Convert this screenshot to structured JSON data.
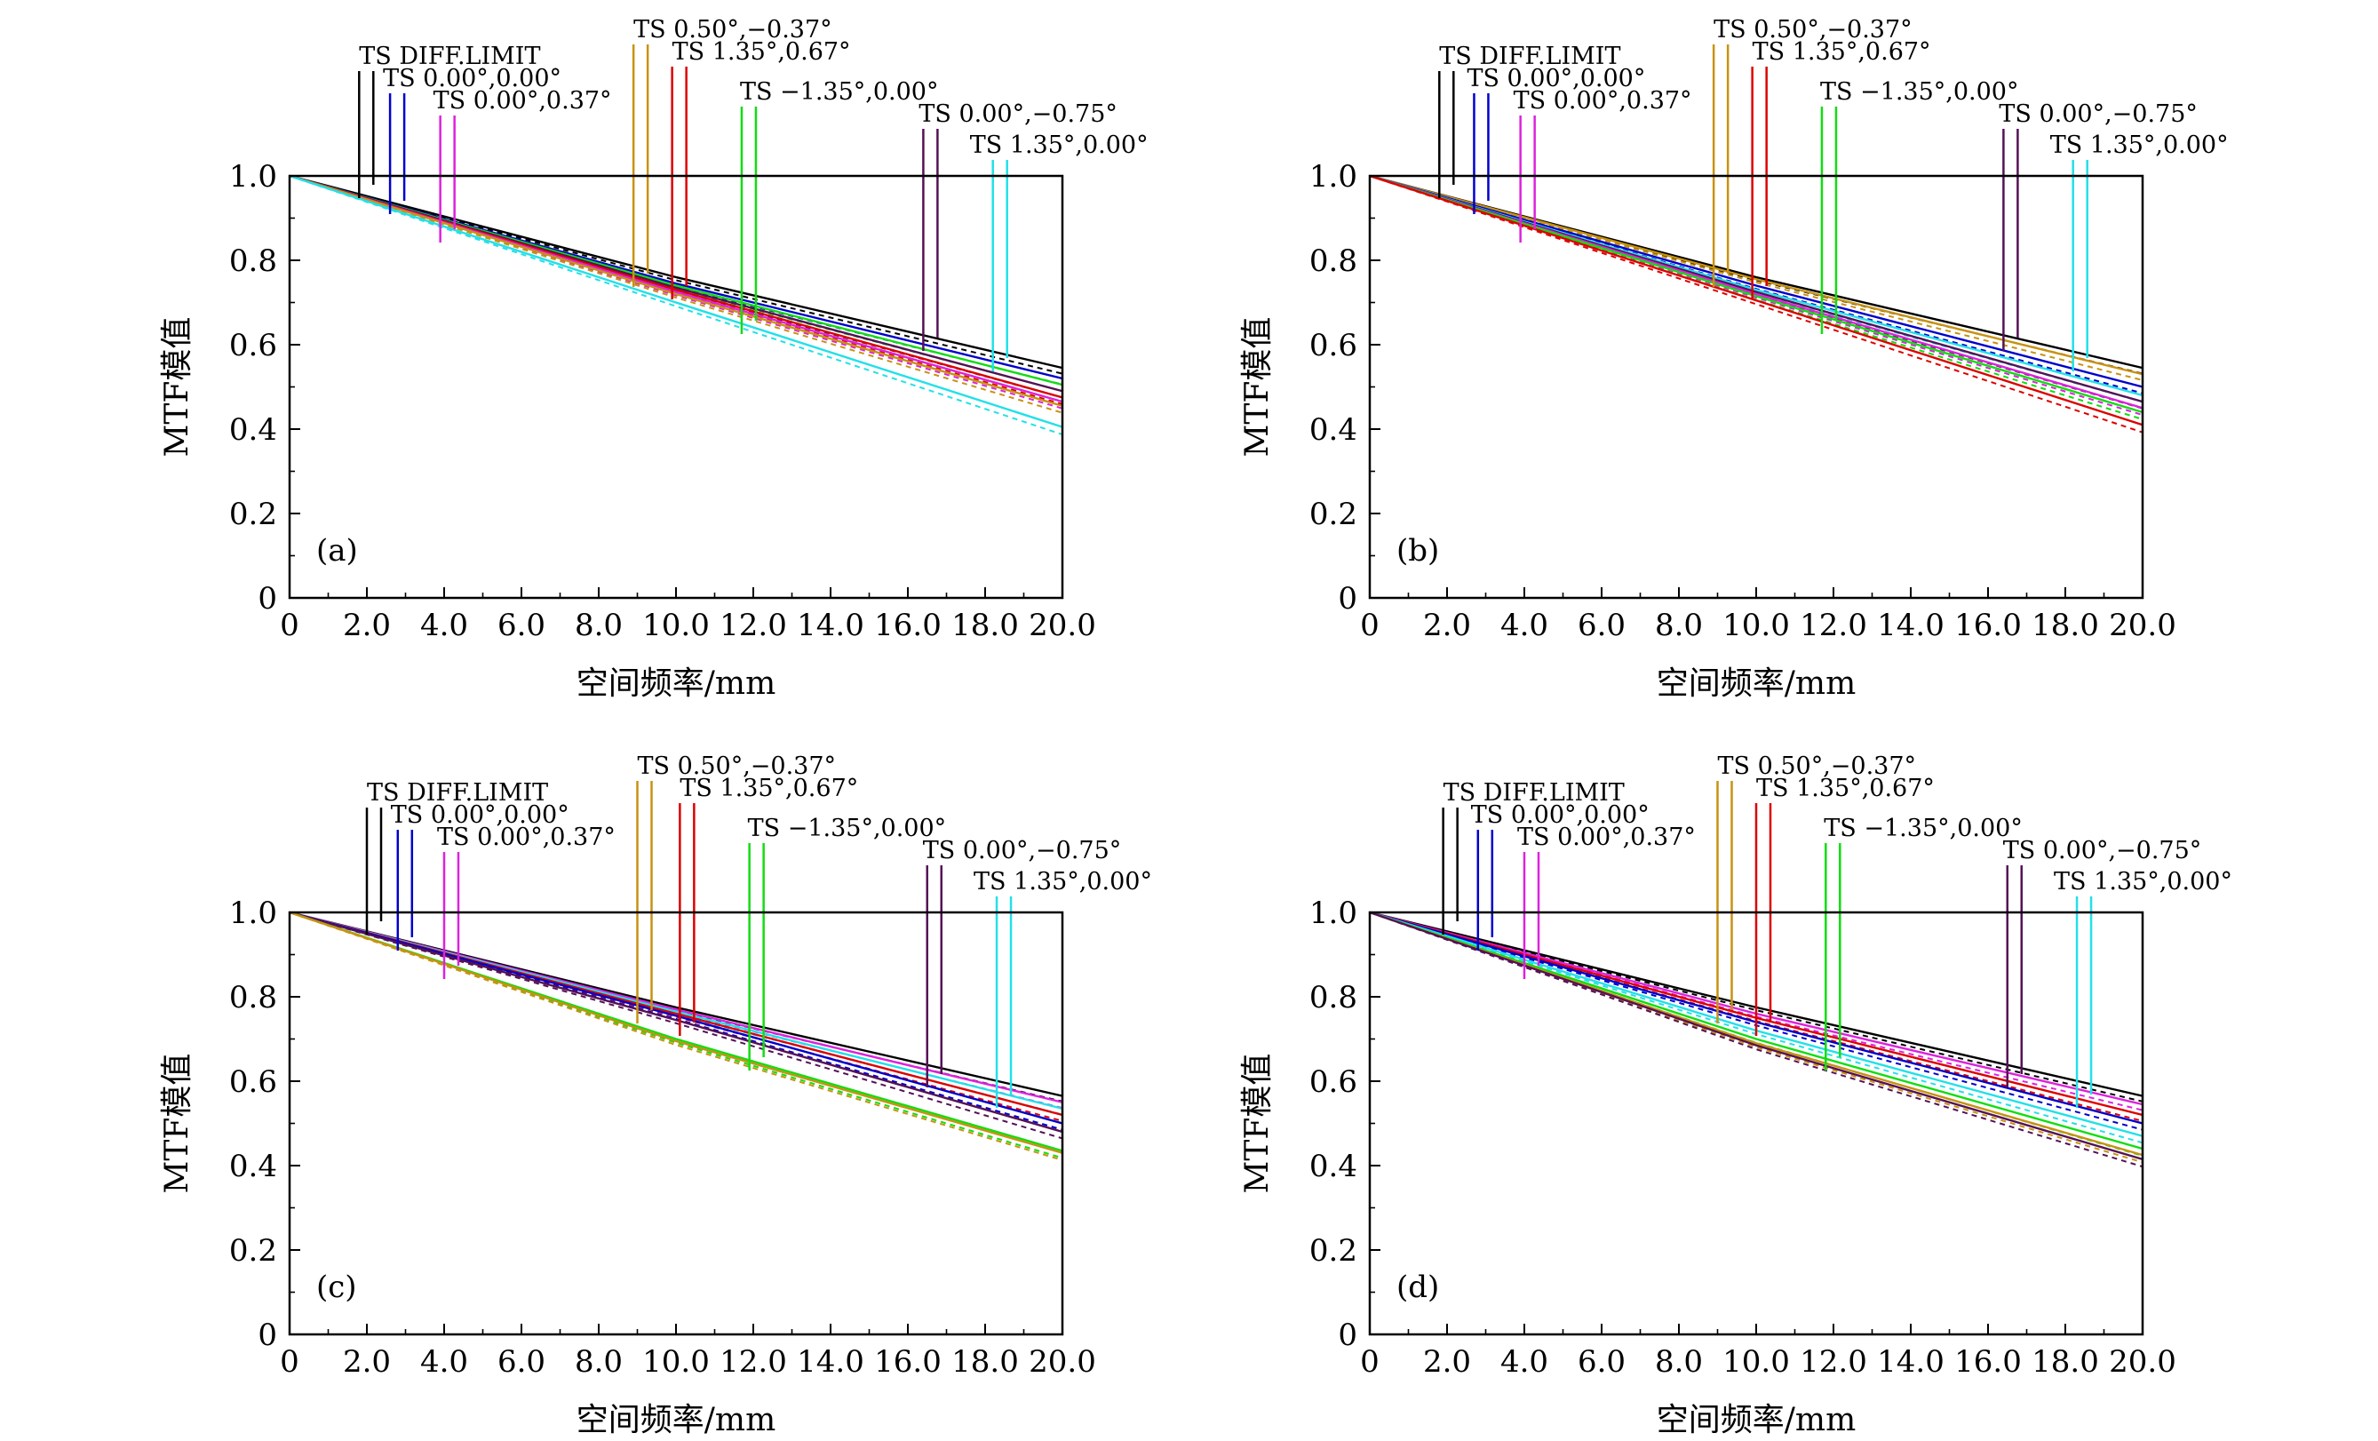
{
  "chart_data": [
    {
      "type": "line",
      "panel_label": "(a)",
      "xlabel": "空间频率/mm",
      "ylabel": "MTF模值",
      "xlim": [
        0,
        20
      ],
      "ylim": [
        0,
        1
      ],
      "xticks": [
        "0",
        "2.0",
        "4.0",
        "6.0",
        "8.0",
        "10.0",
        "12.0",
        "14.0",
        "16.0",
        "18.0",
        "20.0"
      ],
      "yticks": [
        "0",
        "0.2",
        "0.4",
        "0.6",
        "0.8",
        "1.0"
      ],
      "legend": [
        {
          "label": "TS DIFF.LIMIT",
          "color": "#000000",
          "x": 1.8
        },
        {
          "label": "TS 0.00°,0.00°",
          "color": "#0000cc",
          "x": 2.6
        },
        {
          "label": "TS 0.00°,0.37°",
          "color": "#dd22dd",
          "x": 3.9
        },
        {
          "label": "TS 0.50°,−0.37°",
          "color": "#c89211",
          "x": 8.9
        },
        {
          "label": "TS 1.35°,0.67°",
          "color": "#dd0000",
          "x": 9.9
        },
        {
          "label": "TS −1.35°,0.00°",
          "color": "#11dd11",
          "x": 11.7
        },
        {
          "label": "TS 0.00°,−0.75°",
          "color": "#551155",
          "x": 16.4
        },
        {
          "label": "TS 1.35°,0.00°",
          "color": "#22e0e8",
          "x": 18.2
        }
      ],
      "series": [
        {
          "color": "#000000",
          "values": [
            [
              0,
              1.0
            ],
            [
              10,
              0.76
            ],
            [
              20,
              0.545
            ]
          ]
        },
        {
          "color": "#0000cc",
          "values": [
            [
              0,
              1.0
            ],
            [
              10,
              0.745
            ],
            [
              20,
              0.52
            ]
          ]
        },
        {
          "color": "#11dd11",
          "values": [
            [
              0,
              1.0
            ],
            [
              10,
              0.74
            ],
            [
              20,
              0.505
            ]
          ]
        },
        {
          "color": "#551155",
          "values": [
            [
              0,
              1.0
            ],
            [
              10,
              0.735
            ],
            [
              20,
              0.49
            ]
          ]
        },
        {
          "color": "#dd0000",
          "values": [
            [
              0,
              1.0
            ],
            [
              10,
              0.73
            ],
            [
              20,
              0.475
            ]
          ]
        },
        {
          "color": "#dd22dd",
          "values": [
            [
              0,
              1.0
            ],
            [
              10,
              0.725
            ],
            [
              20,
              0.465
            ]
          ]
        },
        {
          "color": "#c89211",
          "values": [
            [
              0,
              1.0
            ],
            [
              10,
              0.72
            ],
            [
              20,
              0.455
            ]
          ]
        },
        {
          "color": "#22e0e8",
          "values": [
            [
              0,
              1.0
            ],
            [
              10,
              0.7
            ],
            [
              20,
              0.405
            ]
          ]
        }
      ]
    },
    {
      "type": "line",
      "panel_label": "(b)",
      "xlabel": "空间频率/mm",
      "ylabel": "MTF模值",
      "xlim": [
        0,
        20
      ],
      "ylim": [
        0,
        1
      ],
      "xticks": [
        "0",
        "2.0",
        "4.0",
        "6.0",
        "8.0",
        "10.0",
        "12.0",
        "14.0",
        "16.0",
        "18.0",
        "20.0"
      ],
      "yticks": [
        "0",
        "0.2",
        "0.4",
        "0.6",
        "0.8",
        "1.0"
      ],
      "legend": [
        {
          "label": "TS DIFF.LIMIT",
          "color": "#000000",
          "x": 1.8
        },
        {
          "label": "TS 0.00°,0.00°",
          "color": "#0000cc",
          "x": 2.7
        },
        {
          "label": "TS 0.00°,0.37°",
          "color": "#dd22dd",
          "x": 3.9
        },
        {
          "label": "TS 0.50°,−0.37°",
          "color": "#c89211",
          "x": 8.9
        },
        {
          "label": "TS 1.35°,0.67°",
          "color": "#dd0000",
          "x": 9.9
        },
        {
          "label": "TS −1.35°,0.00°",
          "color": "#11dd11",
          "x": 11.7
        },
        {
          "label": "TS 0.00°,−0.75°",
          "color": "#551155",
          "x": 16.4
        },
        {
          "label": "TS 1.35°,0.00°",
          "color": "#22e0e8",
          "x": 18.2
        }
      ],
      "series": [
        {
          "color": "#000000",
          "values": [
            [
              0,
              1.0
            ],
            [
              10,
              0.76
            ],
            [
              20,
              0.545
            ]
          ]
        },
        {
          "color": "#c89211",
          "values": [
            [
              0,
              1.0
            ],
            [
              10,
              0.755
            ],
            [
              20,
              0.53
            ]
          ]
        },
        {
          "color": "#0000cc",
          "values": [
            [
              0,
              1.0
            ],
            [
              10,
              0.74
            ],
            [
              20,
              0.5
            ]
          ]
        },
        {
          "color": "#22e0e8",
          "values": [
            [
              0,
              1.0
            ],
            [
              10,
              0.73
            ],
            [
              20,
              0.48
            ]
          ]
        },
        {
          "color": "#551155",
          "values": [
            [
              0,
              1.0
            ],
            [
              10,
              0.725
            ],
            [
              20,
              0.465
            ]
          ]
        },
        {
          "color": "#dd22dd",
          "values": [
            [
              0,
              1.0
            ],
            [
              10,
              0.72
            ],
            [
              20,
              0.45
            ]
          ]
        },
        {
          "color": "#11dd11",
          "values": [
            [
              0,
              1.0
            ],
            [
              10,
              0.715
            ],
            [
              20,
              0.44
            ]
          ]
        },
        {
          "color": "#dd0000",
          "values": [
            [
              0,
              1.0
            ],
            [
              10,
              0.705
            ],
            [
              20,
              0.41
            ]
          ]
        }
      ]
    },
    {
      "type": "line",
      "panel_label": "(c)",
      "xlabel": "空间频率/mm",
      "ylabel": "MTF模值",
      "xlim": [
        0,
        20
      ],
      "ylim": [
        0,
        1
      ],
      "xticks": [
        "0",
        "2.0",
        "4.0",
        "6.0",
        "8.0",
        "10.0",
        "12.0",
        "14.0",
        "16.0",
        "18.0",
        "20.0"
      ],
      "yticks": [
        "0",
        "0.2",
        "0.4",
        "0.6",
        "0.8",
        "1.0"
      ],
      "legend": [
        {
          "label": "TS DIFF.LIMIT",
          "color": "#000000",
          "x": 2.0
        },
        {
          "label": "TS 0.00°,0.00°",
          "color": "#0000cc",
          "x": 2.8
        },
        {
          "label": "TS 0.00°,0.37°",
          "color": "#dd22dd",
          "x": 4.0
        },
        {
          "label": "TS 0.50°,−0.37°",
          "color": "#c89211",
          "x": 9.0
        },
        {
          "label": "TS 1.35°,0.67°",
          "color": "#dd0000",
          "x": 10.1
        },
        {
          "label": "TS −1.35°,0.00°",
          "color": "#11dd11",
          "x": 11.9
        },
        {
          "label": "TS 0.00°,−0.75°",
          "color": "#551155",
          "x": 16.5
        },
        {
          "label": "TS 1.35°,0.00°",
          "color": "#22e0e8",
          "x": 18.3
        }
      ],
      "series": [
        {
          "color": "#000000",
          "values": [
            [
              0,
              1.0
            ],
            [
              10,
              0.775
            ],
            [
              20,
              0.565
            ]
          ]
        },
        {
          "color": "#dd22dd",
          "values": [
            [
              0,
              1.0
            ],
            [
              10,
              0.77
            ],
            [
              20,
              0.55
            ]
          ]
        },
        {
          "color": "#22e0e8",
          "values": [
            [
              0,
              1.0
            ],
            [
              10,
              0.765
            ],
            [
              20,
              0.535
            ]
          ]
        },
        {
          "color": "#dd0000",
          "values": [
            [
              0,
              1.0
            ],
            [
              10,
              0.76
            ],
            [
              20,
              0.52
            ]
          ]
        },
        {
          "color": "#0000cc",
          "values": [
            [
              0,
              1.0
            ],
            [
              10,
              0.755
            ],
            [
              20,
              0.5
            ]
          ]
        },
        {
          "color": "#551155",
          "values": [
            [
              0,
              1.0
            ],
            [
              10,
              0.745
            ],
            [
              20,
              0.48
            ]
          ]
        },
        {
          "color": "#11dd11",
          "values": [
            [
              0,
              1.0
            ],
            [
              10,
              0.7
            ],
            [
              20,
              0.435
            ]
          ]
        },
        {
          "color": "#c89211",
          "values": [
            [
              0,
              1.0
            ],
            [
              10,
              0.695
            ],
            [
              20,
              0.43
            ]
          ]
        }
      ]
    },
    {
      "type": "line",
      "panel_label": "(d)",
      "xlabel": "空间频率/mm",
      "ylabel": "MTF模值",
      "xlim": [
        0,
        20
      ],
      "ylim": [
        0,
        1
      ],
      "xticks": [
        "0",
        "2.0",
        "4.0",
        "6.0",
        "8.0",
        "10.0",
        "12.0",
        "14.0",
        "16.0",
        "18.0",
        "20.0"
      ],
      "yticks": [
        "0",
        "0.2",
        "0.4",
        "0.6",
        "0.8",
        "1.0"
      ],
      "legend": [
        {
          "label": "TS DIFF.LIMIT",
          "color": "#000000",
          "x": 1.9
        },
        {
          "label": "TS 0.00°,0.00°",
          "color": "#0000cc",
          "x": 2.8
        },
        {
          "label": "TS 0.00°,0.37°",
          "color": "#dd22dd",
          "x": 4.0
        },
        {
          "label": "TS 0.50°,−0.37°",
          "color": "#c89211",
          "x": 9.0
        },
        {
          "label": "TS 1.35°,0.67°",
          "color": "#dd0000",
          "x": 10.0
        },
        {
          "label": "TS −1.35°,0.00°",
          "color": "#11dd11",
          "x": 11.8
        },
        {
          "label": "TS 0.00°,−0.75°",
          "color": "#551155",
          "x": 16.5
        },
        {
          "label": "TS 1.35°,0.00°",
          "color": "#22e0e8",
          "x": 18.3
        }
      ],
      "series": [
        {
          "color": "#000000",
          "values": [
            [
              0,
              1.0
            ],
            [
              10,
              0.775
            ],
            [
              20,
              0.565
            ]
          ]
        },
        {
          "color": "#dd22dd",
          "values": [
            [
              0,
              1.0
            ],
            [
              10,
              0.76
            ],
            [
              20,
              0.545
            ]
          ]
        },
        {
          "color": "#dd0000",
          "values": [
            [
              0,
              1.0
            ],
            [
              10,
              0.75
            ],
            [
              20,
              0.52
            ]
          ]
        },
        {
          "color": "#0000cc",
          "values": [
            [
              0,
              1.0
            ],
            [
              10,
              0.74
            ],
            [
              20,
              0.5
            ]
          ]
        },
        {
          "color": "#22e0e8",
          "values": [
            [
              0,
              1.0
            ],
            [
              10,
              0.72
            ],
            [
              20,
              0.47
            ]
          ]
        },
        {
          "color": "#11dd11",
          "values": [
            [
              0,
              1.0
            ],
            [
              10,
              0.7
            ],
            [
              20,
              0.44
            ]
          ]
        },
        {
          "color": "#c89211",
          "values": [
            [
              0,
              1.0
            ],
            [
              10,
              0.69
            ],
            [
              20,
              0.425
            ]
          ]
        },
        {
          "color": "#551155",
          "values": [
            [
              0,
              1.0
            ],
            [
              10,
              0.685
            ],
            [
              20,
              0.415
            ]
          ]
        }
      ]
    }
  ]
}
